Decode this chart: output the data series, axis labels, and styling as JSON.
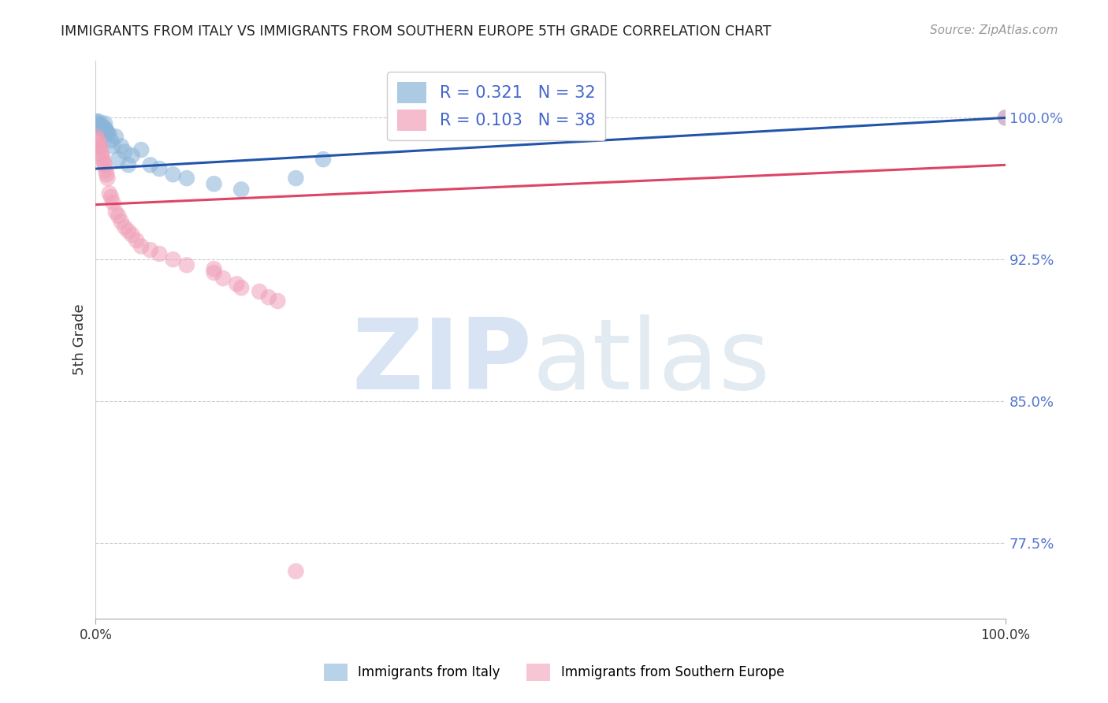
{
  "title": "IMMIGRANTS FROM ITALY VS IMMIGRANTS FROM SOUTHERN EUROPE 5TH GRADE CORRELATION CHART",
  "source": "Source: ZipAtlas.com",
  "ylabel": "5th Grade",
  "ytick_vals": [
    0.775,
    0.85,
    0.925,
    1.0
  ],
  "ytick_labels": [
    "77.5%",
    "85.0%",
    "92.5%",
    "100.0%"
  ],
  "xlim": [
    0.0,
    1.0
  ],
  "ylim": [
    0.735,
    1.03
  ],
  "legend_italy": "Immigrants from Italy",
  "legend_southern": "Immigrants from Southern Europe",
  "R_italy": 0.321,
  "N_italy": 32,
  "R_southern": 0.103,
  "N_southern": 38,
  "italy_color": "#8ab4d8",
  "southern_color": "#f0a0b8",
  "italy_line_color": "#2255aa",
  "southern_line_color": "#dd4466",
  "italy_line_x0": 0.0,
  "italy_line_y0": 0.973,
  "italy_line_x1": 1.0,
  "italy_line_y1": 1.0,
  "southern_line_x0": 0.0,
  "southern_line_y0": 0.954,
  "southern_line_x1": 1.0,
  "southern_line_y1": 0.975,
  "background_color": "#ffffff",
  "italy_scatter_x": [
    0.001,
    0.002,
    0.003,
    0.004,
    0.005,
    0.006,
    0.007,
    0.008,
    0.009,
    0.01,
    0.011,
    0.012,
    0.013,
    0.015,
    0.017,
    0.019,
    0.022,
    0.025,
    0.028,
    0.032,
    0.036,
    0.04,
    0.05,
    0.06,
    0.07,
    0.085,
    0.1,
    0.13,
    0.16,
    0.22,
    0.25,
    1.0
  ],
  "italy_scatter_y": [
    0.998,
    0.997,
    0.998,
    0.996,
    0.995,
    0.994,
    0.996,
    0.995,
    0.993,
    0.997,
    0.994,
    0.993,
    0.992,
    0.991,
    0.988,
    0.985,
    0.99,
    0.978,
    0.985,
    0.982,
    0.975,
    0.98,
    0.983,
    0.975,
    0.973,
    0.97,
    0.968,
    0.965,
    0.962,
    0.968,
    0.978,
    1.0
  ],
  "southern_scatter_x": [
    0.001,
    0.002,
    0.003,
    0.004,
    0.005,
    0.006,
    0.007,
    0.008,
    0.009,
    0.01,
    0.011,
    0.012,
    0.013,
    0.015,
    0.017,
    0.019,
    0.022,
    0.025,
    0.028,
    0.032,
    0.036,
    0.04,
    0.045,
    0.05,
    0.06,
    0.07,
    0.085,
    0.1,
    0.13,
    0.13,
    0.14,
    0.155,
    0.16,
    0.18,
    0.19,
    0.2,
    0.22,
    1.0
  ],
  "southern_scatter_y": [
    0.99,
    0.988,
    0.987,
    0.985,
    0.984,
    0.982,
    0.98,
    0.978,
    0.976,
    0.975,
    0.972,
    0.97,
    0.968,
    0.96,
    0.958,
    0.955,
    0.95,
    0.948,
    0.945,
    0.942,
    0.94,
    0.938,
    0.935,
    0.932,
    0.93,
    0.928,
    0.925,
    0.922,
    0.92,
    0.918,
    0.915,
    0.912,
    0.91,
    0.908,
    0.905,
    0.903,
    0.76,
    1.0
  ]
}
